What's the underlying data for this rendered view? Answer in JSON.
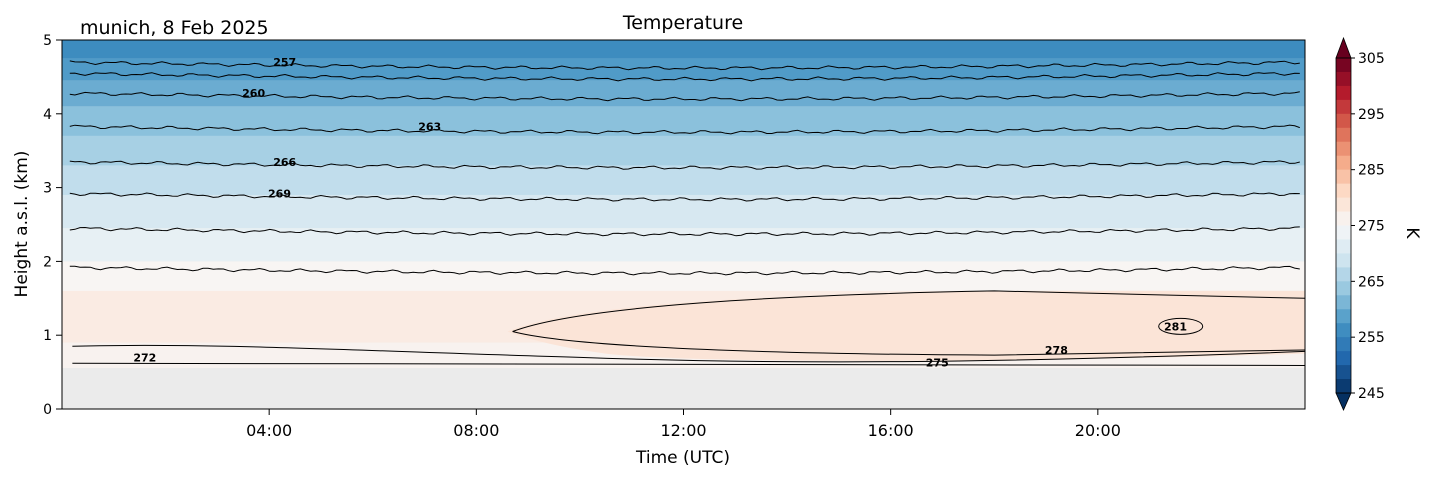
{
  "chart_data": {
    "type": "heatmap",
    "title": "Temperature",
    "subtitle": "munich, 8 Feb 2025",
    "xlabel": "Time (UTC)",
    "ylabel": "Height a.s.l. (km)",
    "x_range_hours": [
      0,
      24
    ],
    "ylim": [
      0,
      5
    ],
    "x_ticks": [
      {
        "hour": 4,
        "label": "04:00"
      },
      {
        "hour": 8,
        "label": "08:00"
      },
      {
        "hour": 12,
        "label": "12:00"
      },
      {
        "hour": 16,
        "label": "16:00"
      },
      {
        "hour": 20,
        "label": "20:00"
      }
    ],
    "y_ticks": [
      {
        "value": 0,
        "label": "0"
      },
      {
        "value": 1,
        "label": "1"
      },
      {
        "value": 2,
        "label": "2"
      },
      {
        "value": 3,
        "label": "3"
      },
      {
        "value": 4,
        "label": "4"
      },
      {
        "value": 5,
        "label": "5"
      }
    ],
    "colorbar": {
      "label": "K",
      "range": [
        245,
        305
      ],
      "ticks": [
        {
          "value": 245,
          "label": "245"
        },
        {
          "value": 255,
          "label": "255"
        },
        {
          "value": 265,
          "label": "265"
        },
        {
          "value": 275,
          "label": "275"
        },
        {
          "value": 285,
          "label": "285"
        },
        {
          "value": 295,
          "label": "295"
        },
        {
          "value": 305,
          "label": "305"
        }
      ],
      "colormap": "RdBu_r",
      "extend": "both"
    },
    "contours": [
      {
        "level": 257,
        "label": "257",
        "height_km": 4.7,
        "label_hour": 4.3
      },
      {
        "level": 258.5,
        "label": "",
        "height_km": 4.55,
        "label_hour": null
      },
      {
        "level": 260,
        "label": "260",
        "height_km": 4.28,
        "label_hour": 3.7
      },
      {
        "level": 263,
        "label": "263",
        "height_km": 3.83,
        "label_hour": 7.1
      },
      {
        "level": 266,
        "label": "266",
        "height_km": 3.35,
        "label_hour": 4.3
      },
      {
        "level": 269,
        "label": "269",
        "height_km": 2.92,
        "label_hour": 4.2
      },
      {
        "level": 272,
        "label": "",
        "height_km": 2.45,
        "label_hour": null
      },
      {
        "level": 275,
        "label": "",
        "height_km": 1.92,
        "label_hour": null
      }
    ],
    "surface_contours": [
      {
        "level": 272,
        "label": "272"
      },
      {
        "level": 275,
        "label": "275"
      },
      {
        "level": 278,
        "label": "278"
      },
      {
        "level": 281,
        "label": "281"
      }
    ],
    "ground_height_km": 0.55,
    "background_color": "#ebebeb"
  }
}
